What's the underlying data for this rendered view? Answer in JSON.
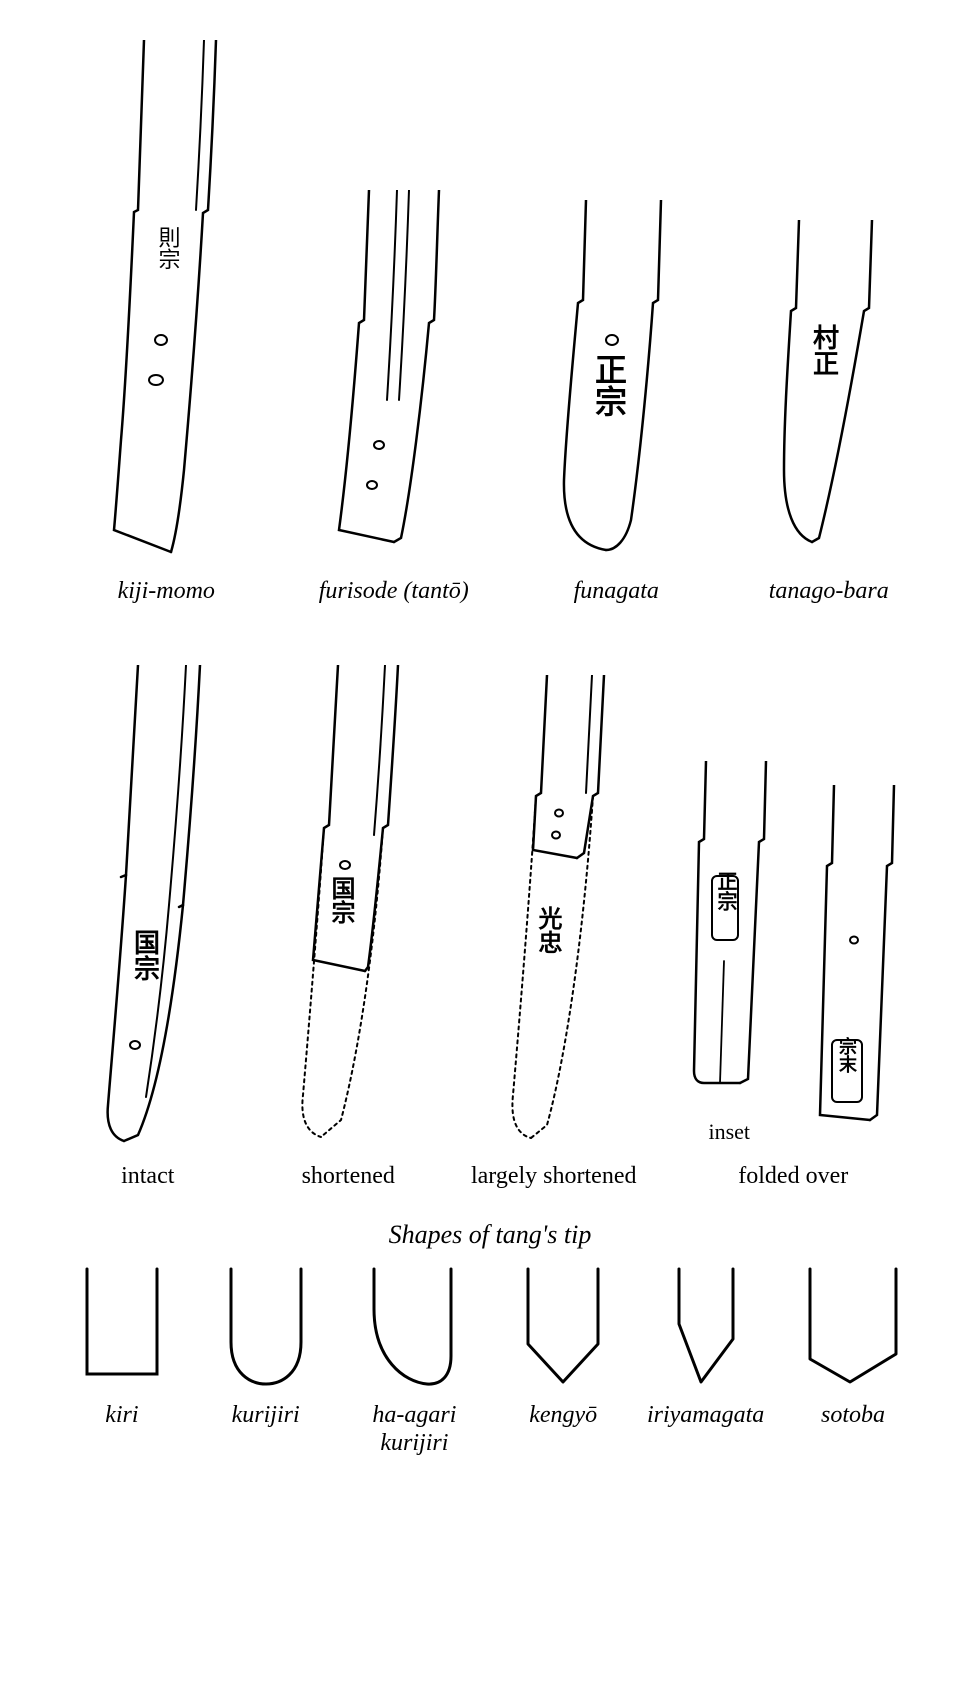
{
  "stroke_color": "#000000",
  "stroke_width_main": 2.5,
  "stroke_width_thin": 2,
  "background_color": "#ffffff",
  "label_font": "Times New Roman",
  "label_fontsize": 24,
  "label_fontstyle": "italic",
  "row1": {
    "items": [
      {
        "label": "kiji-momo"
      },
      {
        "label": "furisode (tantō)"
      },
      {
        "label": "funagata"
      },
      {
        "label": "tanago-bara"
      }
    ]
  },
  "row2": {
    "items": [
      {
        "label": "intact"
      },
      {
        "label": "shortened"
      },
      {
        "label": "largely shortened"
      },
      {
        "label_top": "inset",
        "label_bottom": "folded over"
      }
    ]
  },
  "tipsection": {
    "title": "Shapes of tang's tip",
    "items": [
      {
        "label": "kiri"
      },
      {
        "label": "kurijiri"
      },
      {
        "label": "ha-agari kurijiri"
      },
      {
        "label": "kengyō"
      },
      {
        "label": "iriyamagata"
      },
      {
        "label": "sotoba"
      }
    ]
  },
  "kanji": {
    "kiji_momo": "則宗",
    "funagata": "正宗",
    "tanago": "村正",
    "intact": "国宗",
    "shortened": "国宗",
    "largely": "光忠",
    "inset": "正宗",
    "folded": "宗末"
  }
}
